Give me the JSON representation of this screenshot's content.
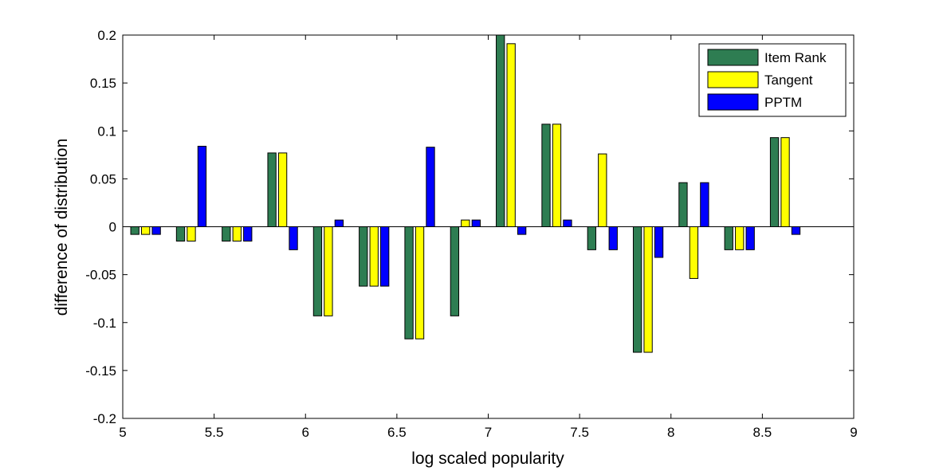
{
  "chart_data": {
    "type": "bar",
    "title": "",
    "xlabel": "log scaled popularity",
    "ylabel": "difference of distribution",
    "xlim": [
      5,
      9
    ],
    "ylim": [
      -0.2,
      0.2
    ],
    "xticks": [
      "5",
      "5.5",
      "6",
      "6.5",
      "7",
      "7.5",
      "8",
      "8.5",
      "9"
    ],
    "yticks": [
      "-0.2",
      "-0.15",
      "-0.1",
      "-0.05",
      "0",
      "0.05",
      "0.1",
      "0.15",
      "0.2"
    ],
    "legend_position": "top-right",
    "grid": false,
    "categories": [
      5.125,
      5.375,
      5.625,
      5.875,
      6.125,
      6.375,
      6.625,
      6.875,
      7.125,
      7.375,
      7.625,
      7.875,
      8.125,
      8.375,
      8.625
    ],
    "series": [
      {
        "name": "Item Rank",
        "color": "#2e7d52",
        "values": [
          -0.008,
          -0.015,
          -0.015,
          0.077,
          -0.093,
          -0.062,
          -0.117,
          -0.093,
          0.2,
          0.107,
          -0.024,
          -0.131,
          0.046,
          -0.024,
          0.093
        ]
      },
      {
        "name": "Tangent",
        "color": "#ffff00",
        "values": [
          -0.008,
          -0.015,
          -0.015,
          0.077,
          -0.093,
          -0.062,
          -0.117,
          0.007,
          0.191,
          0.107,
          0.076,
          -0.131,
          -0.054,
          -0.024,
          0.093
        ]
      },
      {
        "name": "PPTM",
        "color": "#0000ff",
        "values": [
          -0.008,
          0.084,
          -0.015,
          -0.024,
          0.007,
          -0.062,
          0.083,
          0.007,
          -0.008,
          0.007,
          -0.024,
          -0.032,
          0.046,
          -0.024,
          -0.008
        ]
      }
    ]
  }
}
